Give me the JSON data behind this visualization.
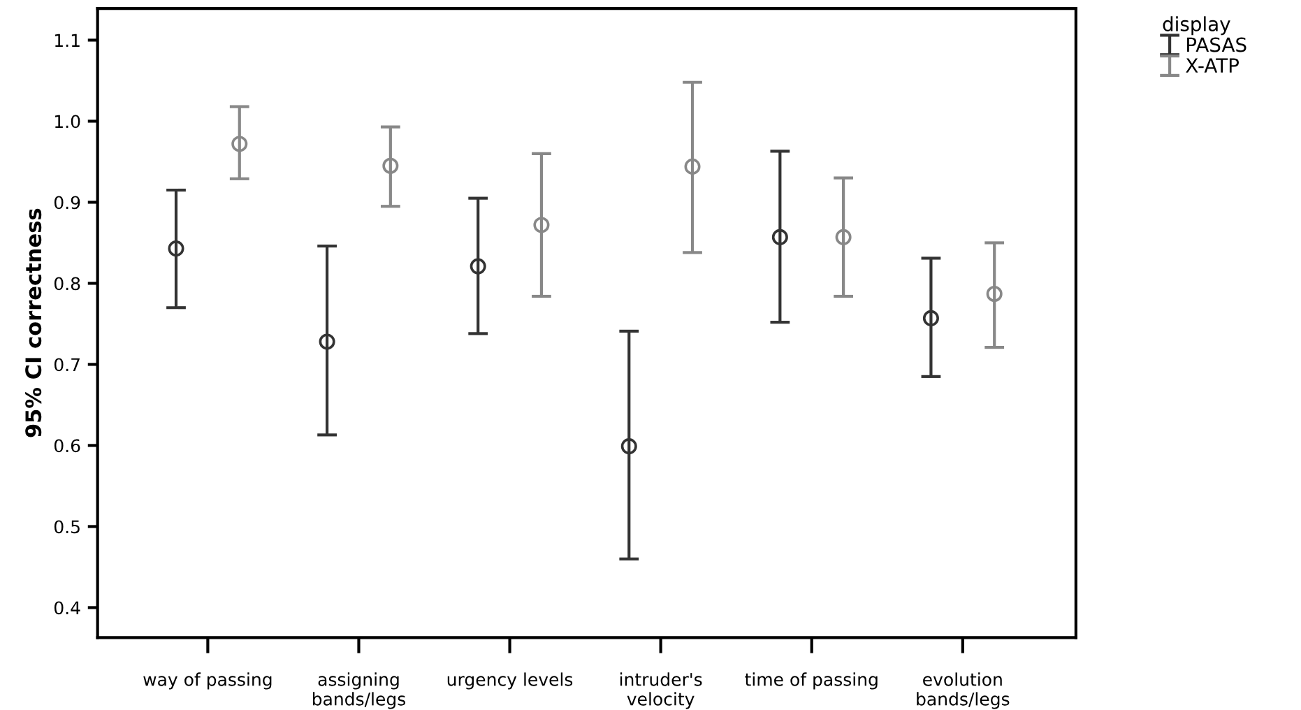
{
  "chart_data": {
    "type": "scatter",
    "ylabel": "95% CI correctness",
    "legend_title": "display",
    "categories": [
      "way of passing",
      "assigning\nbands/legs",
      "urgency levels",
      "intruder's\nvelocity",
      "time of passing",
      "evolution\nbands/legs"
    ],
    "series": [
      {
        "name": "PASAS",
        "color": "#333333",
        "values": [
          0.843,
          0.728,
          0.821,
          0.599,
          0.857,
          0.757
        ],
        "errors": [
          [
            0.77,
            0.915
          ],
          [
            0.613,
            0.846
          ],
          [
            0.738,
            0.905
          ],
          [
            0.46,
            0.741
          ],
          [
            0.752,
            0.963
          ],
          [
            0.685,
            0.831
          ]
        ]
      },
      {
        "name": "X-ATP",
        "color": "#888888",
        "values": [
          0.972,
          0.945,
          0.872,
          0.944,
          0.857,
          0.787
        ],
        "errors": [
          [
            0.929,
            1.018
          ],
          [
            0.895,
            0.993
          ],
          [
            0.784,
            0.96
          ],
          [
            0.838,
            1.048
          ],
          [
            0.784,
            0.93
          ],
          [
            0.721,
            0.85
          ]
        ]
      }
    ],
    "ylim": [
      0.363,
      1.139
    ],
    "yticks": [
      0.4,
      0.5,
      0.6,
      0.7,
      0.8,
      0.9,
      {
        "value": 1.0,
        "label": "1.0"
      },
      1.1
    ],
    "grid": false,
    "legend": "top right",
    "marker": "circle"
  }
}
